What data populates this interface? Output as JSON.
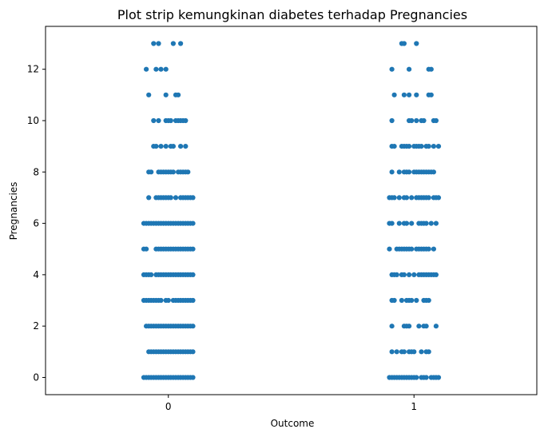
{
  "chart_data": {
    "type": "scatter",
    "subtype": "strip",
    "title": "Plot strip kemungkinan diabetes terhadap Pregnancies",
    "xlabel": "Outcome",
    "ylabel": "Pregnancies",
    "categories": [
      "0",
      "1"
    ],
    "xlim": [
      -0.5,
      1.5
    ],
    "ylim": [
      -0.67,
      13.67
    ],
    "y_ticks": [
      0,
      2,
      4,
      6,
      8,
      10,
      12
    ],
    "y_tick_labels": [
      "0",
      "2",
      "4",
      "6",
      "8",
      "10",
      "12"
    ],
    "grid": false,
    "legend": "none",
    "marker_color": "#1f77b4",
    "series": [
      {
        "category": "0",
        "points": [
          {
            "y": 0,
            "x": [
              -0.1,
              -0.09,
              -0.08,
              -0.07,
              -0.06,
              -0.05,
              -0.04,
              -0.03,
              -0.02,
              -0.01,
              0.0,
              0.01,
              0.02,
              0.03,
              0.04,
              0.05,
              0.06,
              0.07,
              0.08,
              0.09,
              0.1
            ]
          },
          {
            "y": 1,
            "x": [
              -0.08,
              -0.07,
              -0.06,
              -0.05,
              -0.04,
              -0.03,
              -0.02,
              -0.01,
              0.0,
              0.01,
              0.02,
              0.03,
              0.04,
              0.05,
              0.06,
              0.07,
              0.08,
              0.09,
              0.1
            ]
          },
          {
            "y": 2,
            "x": [
              -0.09,
              -0.08,
              -0.07,
              -0.06,
              -0.05,
              -0.04,
              -0.03,
              -0.02,
              -0.01,
              0.0,
              0.01,
              0.02,
              0.03,
              0.04,
              0.05,
              0.06,
              0.07,
              0.08,
              0.09,
              0.1
            ]
          },
          {
            "y": 3,
            "x": [
              -0.1,
              -0.09,
              -0.08,
              -0.07,
              -0.06,
              -0.05,
              -0.04,
              -0.03,
              -0.01,
              0.0,
              0.02,
              0.03,
              0.04,
              0.05,
              0.06,
              0.07,
              0.08,
              0.09,
              0.1
            ]
          },
          {
            "y": 4,
            "x": [
              -0.1,
              -0.09,
              -0.08,
              -0.07,
              -0.05,
              -0.04,
              -0.03,
              -0.02,
              -0.01,
              0.0,
              0.01,
              0.02,
              0.03,
              0.04,
              0.05,
              0.06,
              0.07,
              0.08,
              0.09,
              0.1
            ]
          },
          {
            "y": 5,
            "x": [
              -0.1,
              -0.09,
              -0.05,
              -0.04,
              -0.03,
              -0.02,
              -0.01,
              0.0,
              0.01,
              0.02,
              0.03,
              0.04,
              0.05,
              0.06,
              0.07,
              0.08,
              0.09,
              0.1
            ]
          },
          {
            "y": 6,
            "x": [
              -0.1,
              -0.09,
              -0.08,
              -0.07,
              -0.06,
              -0.05,
              -0.04,
              -0.03,
              -0.02,
              -0.01,
              0.0,
              0.01,
              0.02,
              0.03,
              0.04,
              0.05,
              0.06,
              0.07,
              0.08,
              0.09,
              0.1
            ]
          },
          {
            "y": 7,
            "x": [
              -0.08,
              -0.05,
              -0.04,
              -0.03,
              -0.02,
              -0.01,
              0.0,
              0.01,
              0.03,
              0.05,
              0.06,
              0.07,
              0.08,
              0.09,
              0.1
            ]
          },
          {
            "y": 8,
            "x": [
              -0.08,
              -0.07,
              -0.04,
              -0.03,
              -0.02,
              -0.01,
              0.0,
              0.01,
              0.02,
              0.04,
              0.05,
              0.06,
              0.07,
              0.08
            ]
          },
          {
            "y": 9,
            "x": [
              -0.06,
              -0.05,
              -0.03,
              -0.01,
              0.01,
              0.02,
              0.05,
              0.07
            ]
          },
          {
            "y": 10,
            "x": [
              -0.06,
              -0.04,
              -0.01,
              0.0,
              0.01,
              0.03,
              0.04,
              0.05,
              0.06,
              0.07
            ]
          },
          {
            "y": 11,
            "x": [
              -0.08,
              -0.01,
              0.03,
              0.04
            ]
          },
          {
            "y": 12,
            "x": [
              -0.09,
              -0.05,
              -0.03,
              -0.01
            ]
          },
          {
            "y": 13,
            "x": [
              -0.06,
              -0.04,
              0.02,
              0.05
            ]
          }
        ]
      },
      {
        "category": "1",
        "points": [
          {
            "y": 0,
            "x": [
              0.9,
              0.91,
              0.92,
              0.93,
              0.94,
              0.95,
              0.96,
              0.97,
              0.98,
              0.99,
              1.0,
              1.01,
              1.03,
              1.04,
              1.05,
              1.07,
              1.08,
              1.09,
              1.1
            ]
          },
          {
            "y": 1,
            "x": [
              0.91,
              0.93,
              0.95,
              0.96,
              0.98,
              0.99,
              1.0,
              1.03,
              1.05,
              1.06
            ]
          },
          {
            "y": 2,
            "x": [
              0.91,
              0.96,
              0.97,
              0.98,
              1.02,
              1.04,
              1.05,
              1.09
            ]
          },
          {
            "y": 3,
            "x": [
              0.91,
              0.92,
              0.95,
              0.97,
              0.98,
              0.99,
              1.01,
              1.04,
              1.05,
              1.06
            ]
          },
          {
            "y": 4,
            "x": [
              0.91,
              0.92,
              0.93,
              0.95,
              0.96,
              0.98,
              1.0,
              1.02,
              1.03,
              1.04,
              1.05,
              1.06,
              1.07,
              1.08,
              1.09
            ]
          },
          {
            "y": 5,
            "x": [
              0.9,
              0.93,
              0.94,
              0.95,
              0.96,
              0.97,
              0.98,
              0.99,
              1.01,
              1.02,
              1.03,
              1.04,
              1.05,
              1.06,
              1.08
            ]
          },
          {
            "y": 6,
            "x": [
              0.9,
              0.91,
              0.94,
              0.96,
              0.97,
              0.99,
              1.02,
              1.03,
              1.04,
              1.05,
              1.07,
              1.09
            ]
          },
          {
            "y": 7,
            "x": [
              0.9,
              0.91,
              0.92,
              0.94,
              0.96,
              0.97,
              0.99,
              1.01,
              1.02,
              1.03,
              1.04,
              1.05,
              1.06,
              1.08,
              1.09,
              1.1
            ]
          },
          {
            "y": 8,
            "x": [
              0.91,
              0.94,
              0.96,
              0.97,
              0.98,
              1.0,
              1.01,
              1.02,
              1.03,
              1.04,
              1.05,
              1.06,
              1.07,
              1.08
            ]
          },
          {
            "y": 9,
            "x": [
              0.91,
              0.92,
              0.95,
              0.96,
              0.97,
              0.98,
              1.0,
              1.01,
              1.02,
              1.03,
              1.05,
              1.06,
              1.08,
              1.1
            ]
          },
          {
            "y": 10,
            "x": [
              0.91,
              0.98,
              0.99,
              1.01,
              1.03,
              1.04,
              1.08,
              1.09
            ]
          },
          {
            "y": 11,
            "x": [
              0.92,
              0.96,
              0.98,
              1.01,
              1.06,
              1.07
            ]
          },
          {
            "y": 12,
            "x": [
              0.91,
              0.98,
              1.06,
              1.07
            ]
          },
          {
            "y": 13,
            "x": [
              0.95,
              0.96,
              1.01
            ]
          }
        ]
      }
    ]
  }
}
